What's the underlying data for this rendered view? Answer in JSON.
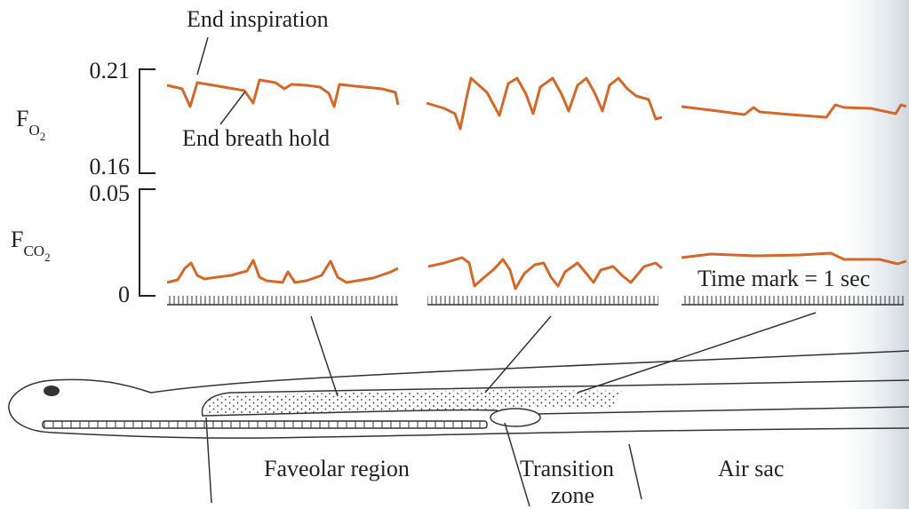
{
  "annotations": {
    "end_inspiration": "End inspiration",
    "end_breath_hold": "End breath hold",
    "time_mark": "Time mark = 1 sec"
  },
  "o2_axis": {
    "label": {
      "main": "F",
      "sub": "O",
      "subsub": "2"
    },
    "top": "0.21",
    "bottom": "0.16"
  },
  "co2_axis": {
    "label": {
      "main": "F",
      "sub": "CO",
      "subsub": "2"
    },
    "top": "0.05",
    "bottom": "0"
  },
  "regions": {
    "faveolar": "Faveolar region",
    "transition_1": "Transition",
    "transition_2": "zone",
    "air_sac": "Air sac"
  }
}
